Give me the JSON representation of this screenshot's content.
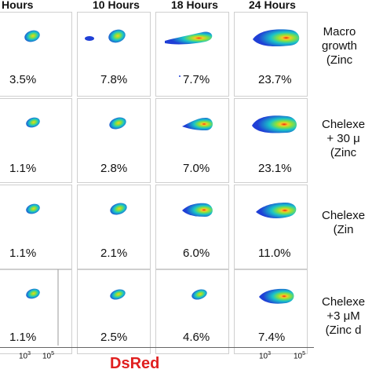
{
  "figure": {
    "column_headers": [
      "Hours",
      "10 Hours",
      "18 Hours",
      "24 Hours"
    ],
    "row_labels": [
      [
        "Macro",
        "growth",
        "(Zinc"
      ],
      [
        "Chelexe",
        "+ 30 μ",
        "(Zinc"
      ],
      [
        "Chelexe",
        "(Zin"
      ],
      [
        "Chelexe",
        "+3 μM",
        "(Zinc d"
      ]
    ],
    "percentages": [
      [
        "3.5%",
        "7.8%",
        "7.7%",
        "23.7%"
      ],
      [
        "1.1%",
        "2.8%",
        "7.0%",
        "23.1%"
      ],
      [
        "1.1%",
        "2.1%",
        "6.0%",
        "11.0%"
      ],
      [
        "1.1%",
        "2.5%",
        "4.6%",
        "7.4%"
      ]
    ],
    "x_ticks": [
      {
        "base": "10",
        "exp": "3"
      },
      {
        "base": "10",
        "exp": "5"
      },
      {
        "base": "10",
        "exp": "3"
      },
      {
        "base": "10",
        "exp": "5"
      }
    ],
    "x_axis_label": "DsRed",
    "colors": {
      "x_axis_label": "#e02020",
      "density_outer": "#1f3fd6",
      "density_mid": "#19c3c8",
      "density_inner": "#8be23a",
      "density_core": "#f02010"
    }
  }
}
